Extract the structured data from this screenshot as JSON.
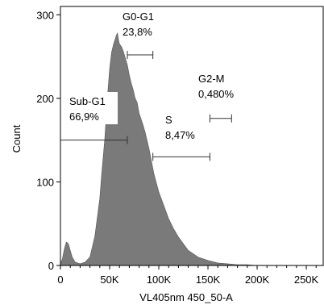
{
  "chart_data": {
    "type": "area",
    "xlabel": "VL405nm 450_50-A",
    "ylabel": "Count",
    "xlim": [
      0,
      268000
    ],
    "ylim": [
      0,
      310
    ],
    "x_ticks": [
      0,
      50000,
      100000,
      150000,
      200000,
      250000
    ],
    "x_tick_labels": [
      "0",
      "50K",
      "100K",
      "150K",
      "200K",
      "250K"
    ],
    "y_ticks": [
      0,
      100,
      200,
      300
    ],
    "y_tick_labels": [
      "0",
      "100",
      "200",
      "300"
    ],
    "colors": {
      "fill": "#7a7a7a",
      "axis": "#000000",
      "gate_label_bg": "#ffffff"
    },
    "series": [
      {
        "x": [
          0,
          2000,
          4000,
          6000,
          8000,
          10000,
          12000,
          15000,
          20000,
          25000,
          30000,
          35000,
          40000,
          42000,
          45000,
          48000,
          50000,
          52000,
          54000,
          56000,
          57000,
          58000,
          59000,
          60000,
          62000,
          64000,
          66000,
          68000,
          70000,
          72000,
          74000,
          76000,
          78000,
          80000,
          82000,
          84000,
          86000,
          88000,
          90000,
          92000,
          95000,
          100000,
          105000,
          110000,
          115000,
          120000,
          130000,
          140000,
          150000,
          160000,
          170000,
          180000,
          190000,
          200000,
          268000
        ],
        "y": [
          2,
          8,
          20,
          28,
          26,
          18,
          10,
          4,
          2,
          4,
          10,
          35,
          80,
          110,
          150,
          205,
          235,
          255,
          265,
          272,
          276,
          278,
          270,
          265,
          262,
          256,
          248,
          240,
          228,
          218,
          210,
          200,
          195,
          182,
          175,
          168,
          160,
          150,
          140,
          128,
          110,
          88,
          72,
          56,
          44,
          34,
          18,
          10,
          6,
          3,
          2,
          1,
          1,
          0,
          0
        ]
      }
    ],
    "gates": [
      {
        "name": "Sub-G1",
        "value": "66,9%",
        "x_range": [
          0,
          68000
        ],
        "y_level": 150
      },
      {
        "name": "G0-G1",
        "value": "23,8%",
        "x_range": [
          68000,
          94000
        ],
        "y_level": 252
      },
      {
        "name": "S",
        "value": "8,47%",
        "x_range": [
          94000,
          152000
        ],
        "y_level": 130
      },
      {
        "name": "G2-M",
        "value": "0,480%",
        "x_range": [
          152000,
          174000
        ],
        "y_level": 176
      }
    ]
  }
}
